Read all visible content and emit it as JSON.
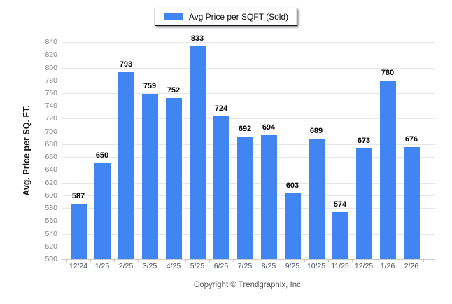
{
  "legend": {
    "label": "Avg Price per SQFT (Sold)",
    "swatch_color": "#4185f2"
  },
  "footer": {
    "text": "Copyright © Trendgraphix, Inc."
  },
  "chart_data": {
    "type": "bar",
    "title": "Avg Price per SQFT (Sold)",
    "categories": [
      "12/24",
      "1/25",
      "2/25",
      "3/25",
      "4/25",
      "5/25",
      "6/25",
      "7/25",
      "8/25",
      "9/25",
      "10/25",
      "11/25",
      "12/25",
      "1/26",
      "2/26"
    ],
    "values": [
      587,
      650,
      793,
      759,
      752,
      833,
      724,
      692,
      694,
      603,
      689,
      574,
      673,
      780,
      676
    ],
    "xlabel": "",
    "ylabel": "Avg. Price per SQ. FT.",
    "ylim": [
      500,
      840
    ],
    "ytick_step": 20,
    "yticks_desc": [
      840,
      820,
      800,
      780,
      760,
      740,
      720,
      700,
      680,
      660,
      640,
      620,
      600,
      580,
      560,
      540,
      520,
      500
    ],
    "grid": true,
    "value_labels": true,
    "legend_position": "top-center",
    "bar_color": "#4185f2"
  },
  "colors": {
    "bar": "#4185f2",
    "gridline": "#e7e7e7",
    "baseline": "#cccccc",
    "y_tick_label": "#7f7f7f",
    "x_tick_label": "#4b5266",
    "value_label": "#000000",
    "footer_text": "#595959"
  }
}
